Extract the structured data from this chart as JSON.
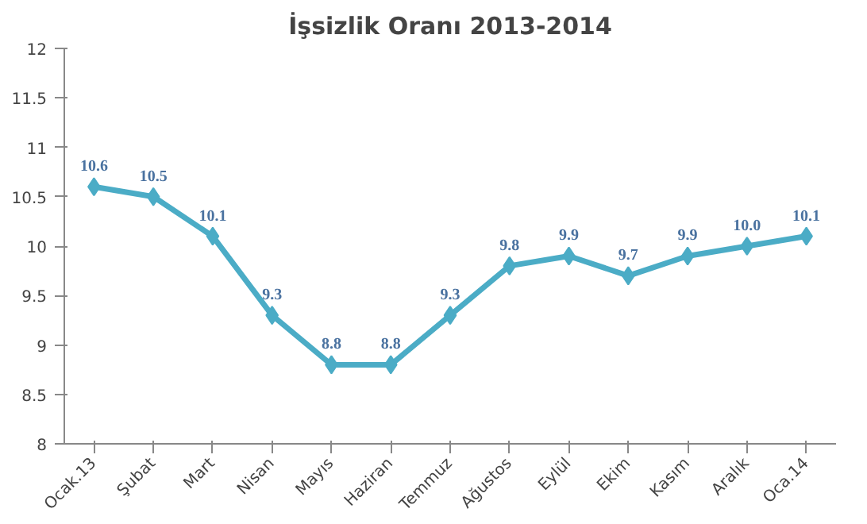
{
  "chart_data": {
    "type": "line",
    "title": "İşsizlik Oranı 2013-2014",
    "categories": [
      "Ocak.13",
      "Şubat",
      "Mart",
      "Nisan",
      "Mayıs",
      "Haziran",
      "Temmuz",
      "Ağustos",
      "Eylül",
      "Ekim",
      "Kasım",
      "Aralık",
      "Oca.14"
    ],
    "series": [
      {
        "color": "#4bacc6",
        "values": [
          10.6,
          10.5,
          10.1,
          9.3,
          8.8,
          8.8,
          9.3,
          9.8,
          9.9,
          9.7,
          9.9,
          10.0,
          10.1
        ],
        "value_labels": [
          "10.6",
          "10.5",
          "10.1",
          "9.3",
          "8.8",
          "8.8",
          "9.3",
          "9.8",
          "9.9",
          "9.7",
          "9.9",
          "10.0",
          "10.1"
        ]
      }
    ],
    "ylim": [
      8,
      12
    ],
    "yticks": [
      8,
      8.5,
      9,
      9.5,
      10,
      10.5,
      11,
      11.5,
      12
    ],
    "marker": "diamond",
    "line_style": "solid"
  }
}
